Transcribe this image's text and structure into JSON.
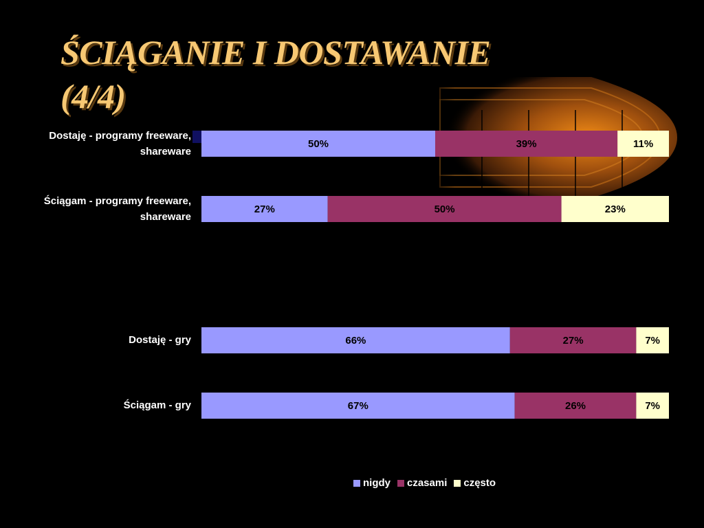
{
  "slide": {
    "title_line1": "ŚCIĄGANIE I DOSTAWANIE",
    "title_line2": "(4/4)"
  },
  "chart_data": {
    "type": "bar",
    "orientation": "horizontal",
    "stacked": "percent",
    "categories": [
      "Dostaję - programy freeware, shareware",
      "Ściągam - programy freeware, shareware",
      "Dostaję - gry",
      "Ściągam - gry"
    ],
    "series": [
      {
        "name": "nigdy",
        "color": "#9999ff",
        "values": [
          50,
          27,
          66,
          67
        ],
        "labels": [
          "50%",
          "27%",
          "66%",
          "67%"
        ]
      },
      {
        "name": "czasami",
        "color": "#993366",
        "values": [
          39,
          50,
          27,
          26
        ],
        "labels": [
          "39%",
          "50%",
          "27%",
          "26%"
        ]
      },
      {
        "name": "często",
        "color": "#ffffcc",
        "values": [
          11,
          23,
          7,
          7
        ],
        "labels": [
          "11%",
          "23%",
          "7%",
          "7%"
        ]
      }
    ],
    "xlim": [
      0,
      100
    ],
    "legend_position": "bottom",
    "grid": false
  }
}
